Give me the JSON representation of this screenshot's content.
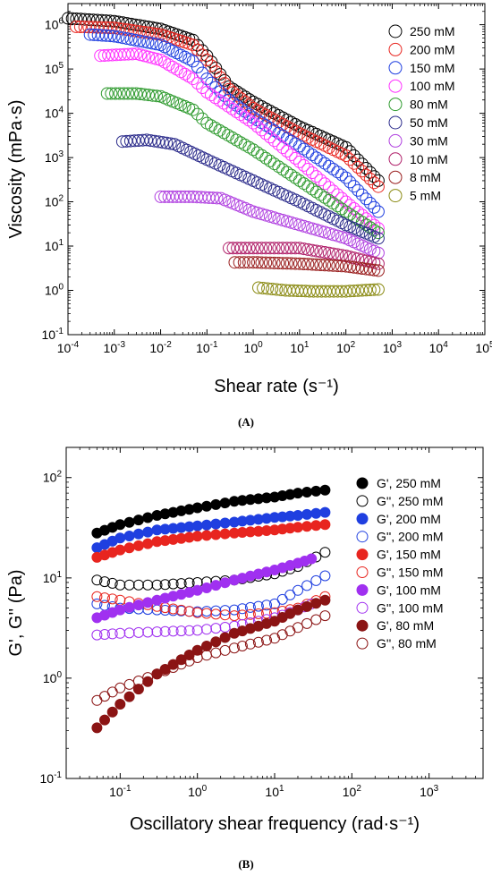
{
  "chart_data": [
    {
      "panel_label": "(A)",
      "type": "scatter",
      "xlabel": "Shear rate (s⁻¹)",
      "ylabel": "Viscosity (mPa·s)",
      "xscale": "log",
      "yscale": "log",
      "xlim": [
        0.0001,
        100000
      ],
      "ylim": [
        0.1,
        3000000
      ],
      "xticks": [
        0.0001,
        0.001,
        0.01,
        0.1,
        1,
        10,
        100,
        1000,
        10000,
        100000
      ],
      "yticks": [
        0.1,
        1,
        10,
        100,
        1000,
        10000,
        100000,
        1000000
      ],
      "xtick_labels": [
        [
          "10",
          "-4"
        ],
        [
          "10",
          "-3"
        ],
        [
          "10",
          "-2"
        ],
        [
          "10",
          "-1"
        ],
        [
          "10",
          "0"
        ],
        [
          "10",
          "1"
        ],
        [
          "10",
          "2"
        ],
        [
          "10",
          "3"
        ],
        [
          "10",
          "4"
        ],
        [
          "10",
          "5"
        ]
      ],
      "ytick_labels": [
        [
          "10",
          "-1"
        ],
        [
          "10",
          "0"
        ],
        [
          "10",
          "1"
        ],
        [
          "10",
          "2"
        ],
        [
          "10",
          "3"
        ],
        [
          "10",
          "4"
        ],
        [
          "10",
          "5"
        ],
        [
          "10",
          "6"
        ]
      ],
      "legend_position": "top-right",
      "series": [
        {
          "name": "250 mM",
          "color": "#000000",
          "marker": "open-circle",
          "points": [
            [
              0.0001,
              1400000
            ],
            [
              0.001,
              1200000
            ],
            [
              0.01,
              800000
            ],
            [
              0.05,
              450000
            ],
            [
              0.1,
              200000
            ],
            [
              0.3,
              40000
            ],
            [
              1,
              18000
            ],
            [
              10,
              5000
            ],
            [
              100,
              1700
            ],
            [
              500,
              300
            ]
          ]
        },
        {
          "name": "200 mM",
          "color": "#e8251f",
          "marker": "open-circle",
          "points": [
            [
              0.00015,
              900000
            ],
            [
              0.001,
              850000
            ],
            [
              0.01,
              600000
            ],
            [
              0.05,
              350000
            ],
            [
              0.1,
              160000
            ],
            [
              0.3,
              35000
            ],
            [
              1,
              13000
            ],
            [
              10,
              3500
            ],
            [
              100,
              1100
            ],
            [
              500,
              220
            ]
          ]
        },
        {
          "name": "150 mM",
          "color": "#1f3fe0",
          "marker": "open-circle",
          "points": [
            [
              0.0003,
              600000
            ],
            [
              0.001,
              550000
            ],
            [
              0.01,
              350000
            ],
            [
              0.05,
              150000
            ],
            [
              0.1,
              60000
            ],
            [
              0.3,
              20000
            ],
            [
              1,
              8000
            ],
            [
              10,
              1800
            ],
            [
              100,
              350
            ],
            [
              500,
              60
            ]
          ]
        },
        {
          "name": "100 mM",
          "color": "#ff33ff",
          "marker": "open-circle",
          "points": [
            [
              0.0005,
              200000
            ],
            [
              0.003,
              220000
            ],
            [
              0.01,
              160000
            ],
            [
              0.05,
              60000
            ],
            [
              0.1,
              30000
            ],
            [
              1,
              6000
            ],
            [
              10,
              800
            ],
            [
              100,
              100
            ],
            [
              500,
              25
            ]
          ]
        },
        {
          "name": "80 mM",
          "color": "#2e9a2e",
          "marker": "open-circle",
          "points": [
            [
              0.0007,
              28000
            ],
            [
              0.003,
              28000
            ],
            [
              0.01,
              24000
            ],
            [
              0.05,
              12000
            ],
            [
              0.1,
              6000
            ],
            [
              1,
              1500
            ],
            [
              10,
              300
            ],
            [
              100,
              60
            ],
            [
              500,
              20
            ]
          ]
        },
        {
          "name": "50 mM",
          "color": "#2a2a8a",
          "marker": "open-circle",
          "points": [
            [
              0.0015,
              2300
            ],
            [
              0.005,
              2500
            ],
            [
              0.02,
              2000
            ],
            [
              0.1,
              900
            ],
            [
              1,
              300
            ],
            [
              10,
              100
            ],
            [
              100,
              30
            ],
            [
              500,
              15
            ]
          ]
        },
        {
          "name": "30 mM",
          "color": "#b040e0",
          "marker": "open-circle",
          "points": [
            [
              0.01,
              130
            ],
            [
              0.05,
              130
            ],
            [
              0.2,
              120
            ],
            [
              1,
              60
            ],
            [
              10,
              30
            ],
            [
              100,
              15
            ],
            [
              500,
              7
            ]
          ]
        },
        {
          "name": "10 mM",
          "color": "#b0206a",
          "marker": "open-circle",
          "points": [
            [
              0.3,
              9
            ],
            [
              1,
              9
            ],
            [
              10,
              9
            ],
            [
              100,
              6
            ],
            [
              500,
              4
            ]
          ]
        },
        {
          "name": "8 mM",
          "color": "#9a1f1f",
          "marker": "open-circle",
          "points": [
            [
              0.4,
              4.3
            ],
            [
              1,
              4.3
            ],
            [
              10,
              4
            ],
            [
              100,
              3.5
            ],
            [
              500,
              2.8
            ]
          ]
        },
        {
          "name": "5 mM",
          "color": "#8a8a12",
          "marker": "open-circle",
          "points": [
            [
              1.3,
              1.15
            ],
            [
              5,
              1.0
            ],
            [
              20,
              0.95
            ],
            [
              100,
              0.95
            ],
            [
              500,
              1.05
            ]
          ]
        }
      ]
    },
    {
      "panel_label": "(B)",
      "type": "scatter",
      "xlabel": "Oscillatory shear frequency (rad·s⁻¹)",
      "ylabel": "G', G'' (Pa)",
      "xscale": "log",
      "yscale": "log",
      "xlim": [
        0.02,
        5000
      ],
      "ylim": [
        0.1,
        200
      ],
      "xticks": [
        0.1,
        1,
        10,
        100,
        1000
      ],
      "yticks": [
        0.1,
        1,
        10,
        100
      ],
      "xtick_labels": [
        [
          "10",
          "-1"
        ],
        [
          "10",
          "0"
        ],
        [
          "10",
          "1"
        ],
        [
          "10",
          "2"
        ],
        [
          "10",
          "3"
        ]
      ],
      "ytick_labels": [
        [
          "10",
          "-1"
        ],
        [
          "10",
          "0"
        ],
        [
          "10",
          "1"
        ],
        [
          "10",
          "2"
        ]
      ],
      "legend_position": "top-right",
      "series": [
        {
          "name": "G',  250 mM",
          "color": "#000000",
          "marker": "filled-circle",
          "points": [
            [
              0.05,
              28
            ],
            [
              0.1,
              34
            ],
            [
              0.3,
              42
            ],
            [
              1,
              50
            ],
            [
              3,
              58
            ],
            [
              10,
              64
            ],
            [
              20,
              70
            ],
            [
              45,
              75
            ]
          ]
        },
        {
          "name": "G'', 250 mM",
          "color": "#000000",
          "marker": "open-circle",
          "points": [
            [
              0.05,
              9.5
            ],
            [
              0.1,
              8.5
            ],
            [
              0.3,
              8.5
            ],
            [
              1,
              9
            ],
            [
              3,
              9.5
            ],
            [
              10,
              11
            ],
            [
              20,
              13
            ],
            [
              45,
              18
            ]
          ]
        },
        {
          "name": "G',  200 mM",
          "color": "#1f3fe0",
          "marker": "filled-circle",
          "points": [
            [
              0.05,
              20
            ],
            [
              0.1,
              25
            ],
            [
              0.3,
              30
            ],
            [
              1,
              33
            ],
            [
              3,
              36
            ],
            [
              10,
              40
            ],
            [
              20,
              42
            ],
            [
              45,
              45
            ]
          ]
        },
        {
          "name": "G'', 200 mM",
          "color": "#1f3fe0",
          "marker": "open-circle",
          "points": [
            [
              0.05,
              5.5
            ],
            [
              0.1,
              5
            ],
            [
              0.3,
              4.8
            ],
            [
              1,
              4.6
            ],
            [
              3,
              4.8
            ],
            [
              10,
              5.5
            ],
            [
              20,
              7.5
            ],
            [
              45,
              10.5
            ]
          ]
        },
        {
          "name": "G',  150 mM",
          "color": "#e8251f",
          "marker": "filled-circle",
          "points": [
            [
              0.05,
              16
            ],
            [
              0.1,
              19
            ],
            [
              0.3,
              23
            ],
            [
              1,
              26
            ],
            [
              3,
              28
            ],
            [
              10,
              30
            ],
            [
              20,
              32
            ],
            [
              45,
              34
            ]
          ]
        },
        {
          "name": "G'', 150 mM",
          "color": "#e8251f",
          "marker": "open-circle",
          "points": [
            [
              0.05,
              6.5
            ],
            [
              0.1,
              6
            ],
            [
              0.3,
              5.2
            ],
            [
              1,
              4.5
            ],
            [
              3,
              4.2
            ],
            [
              10,
              4.5
            ],
            [
              20,
              5
            ],
            [
              45,
              6.5
            ]
          ]
        },
        {
          "name": "G',  100 mM",
          "color": "#a030f0",
          "marker": "filled-circle",
          "points": [
            [
              0.05,
              4
            ],
            [
              0.1,
              4.8
            ],
            [
              0.3,
              6
            ],
            [
              1,
              7.5
            ],
            [
              3,
              9.5
            ],
            [
              10,
              12
            ],
            [
              20,
              14
            ],
            [
              30,
              15.5
            ]
          ]
        },
        {
          "name": "G'', 100 mM",
          "color": "#a030f0",
          "marker": "open-circle",
          "points": [
            [
              0.05,
              2.7
            ],
            [
              0.1,
              2.8
            ],
            [
              0.3,
              2.9
            ],
            [
              1,
              3
            ],
            [
              3,
              3.3
            ],
            [
              10,
              4
            ],
            [
              20,
              4.8
            ],
            [
              30,
              5.5
            ]
          ]
        },
        {
          "name": "G',   80 mM",
          "color": "#8b1414",
          "marker": "filled-circle",
          "points": [
            [
              0.05,
              0.32
            ],
            [
              0.1,
              0.55
            ],
            [
              0.3,
              1.1
            ],
            [
              1,
              1.9
            ],
            [
              3,
              2.8
            ],
            [
              10,
              3.7
            ],
            [
              20,
              4.8
            ],
            [
              45,
              6
            ]
          ]
        },
        {
          "name": "G'',  80 mM",
          "color": "#8b1414",
          "marker": "open-circle",
          "points": [
            [
              0.05,
              0.6
            ],
            [
              0.1,
              0.8
            ],
            [
              0.3,
              1.1
            ],
            [
              1,
              1.6
            ],
            [
              3,
              2
            ],
            [
              10,
              2.5
            ],
            [
              20,
              3.2
            ],
            [
              45,
              4.2
            ]
          ]
        }
      ]
    }
  ]
}
